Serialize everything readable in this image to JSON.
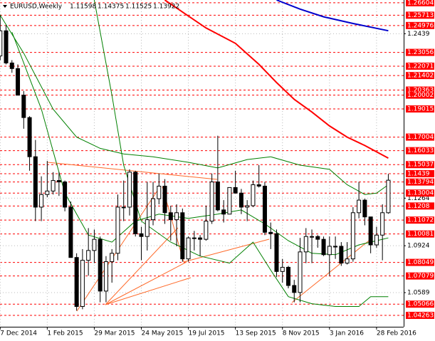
{
  "chart_data": {
    "type": "candlestick",
    "symbol": "EURUSD,Weekly",
    "categories": [
      null,
      "7 Dec 2014",
      null,
      null,
      null,
      null,
      null,
      null,
      null,
      "1 Feb 2015",
      null,
      null,
      null,
      null,
      null,
      null,
      null,
      "29 Mar 2015",
      null,
      null,
      null,
      null,
      null,
      null,
      null,
      "24 May 2015",
      null,
      null,
      null,
      null,
      null,
      null,
      null,
      "19 Jul 2015",
      null,
      null,
      null,
      null,
      null,
      null,
      null,
      "13 Sep 2015",
      null,
      null,
      null,
      null,
      null,
      null,
      null,
      "8 Nov 2015",
      null,
      null,
      null,
      null,
      null,
      null,
      null,
      "3 Jan 2016",
      null,
      null,
      null,
      null,
      null,
      null,
      null,
      "28 Feb 2016",
      null,
      null
    ],
    "open": [
      1.245,
      1.228,
      1.246,
      1.223,
      1.219,
      1.2,
      1.184,
      1.156,
      1.12,
      1.129,
      1.1315,
      1.139,
      1.138,
      1.12,
      1.084,
      1.049,
      1.082,
      1.089,
      1.097,
      1.06,
      1.081,
      1.087,
      1.12,
      1.12,
      1.145,
      1.101,
      1.099,
      1.111,
      1.126,
      1.135,
      1.116,
      1.111,
      1.116,
      1.083,
      1.098,
      1.098,
      1.097,
      1.11,
      1.138,
      1.118,
      1.115,
      1.134,
      1.13,
      1.12,
      1.121,
      1.136,
      1.135,
      1.102,
      1.101,
      1.074,
      1.077,
      1.064,
      1.059,
      1.088,
      1.099,
      1.099,
      1.097,
      1.086,
      1.092,
      1.092,
      1.08,
      1.083,
      1.116,
      1.125,
      1.113,
      1.093,
      1.1,
      1.11598
    ],
    "high": [
      1.253,
      1.257,
      1.25,
      1.225,
      1.222,
      1.203,
      1.185,
      1.168,
      1.142,
      1.153,
      1.145,
      1.145,
      1.139,
      1.124,
      1.087,
      1.09,
      1.105,
      1.104,
      1.099,
      1.085,
      1.09,
      1.129,
      1.139,
      1.147,
      1.146,
      1.106,
      1.138,
      1.138,
      1.144,
      1.14,
      1.121,
      1.122,
      1.119,
      1.099,
      1.103,
      1.1,
      1.121,
      1.144,
      1.171,
      1.125,
      1.134,
      1.146,
      1.133,
      1.125,
      1.139,
      1.15,
      1.138,
      1.109,
      1.104,
      1.083,
      1.078,
      1.068,
      1.098,
      1.105,
      1.104,
      1.1,
      1.099,
      1.099,
      1.099,
      1.095,
      1.095,
      1.12,
      1.138,
      1.126,
      1.113,
      1.106,
      1.122,
      1.14375
    ],
    "low": [
      1.227,
      1.225,
      1.222,
      1.216,
      1.2,
      1.176,
      1.146,
      1.11,
      1.11,
      1.127,
      1.129,
      1.128,
      1.117,
      1.084,
      1.046,
      1.047,
      1.071,
      1.08,
      1.052,
      1.052,
      1.066,
      1.082,
      1.11,
      1.114,
      1.099,
      1.082,
      1.089,
      1.107,
      1.122,
      1.108,
      1.096,
      1.092,
      1.081,
      1.081,
      1.089,
      1.085,
      1.096,
      1.108,
      1.117,
      1.109,
      1.115,
      1.13,
      1.115,
      1.11,
      1.12,
      1.134,
      1.1,
      1.09,
      1.07,
      1.066,
      1.062,
      1.052,
      1.052,
      1.08,
      1.08,
      1.091,
      1.085,
      1.071,
      1.083,
      1.078,
      1.079,
      1.081,
      1.112,
      1.107,
      1.087,
      1.091,
      1.082,
      1.11525
    ],
    "close": [
      1.228,
      1.246,
      1.223,
      1.219,
      1.2,
      1.184,
      1.156,
      1.12,
      1.129,
      1.1315,
      1.139,
      1.138,
      1.12,
      1.084,
      1.049,
      1.082,
      1.089,
      1.097,
      1.06,
      1.081,
      1.087,
      1.12,
      1.12,
      1.145,
      1.101,
      1.099,
      1.111,
      1.126,
      1.135,
      1.116,
      1.111,
      1.116,
      1.083,
      1.098,
      1.098,
      1.097,
      1.11,
      1.138,
      1.118,
      1.115,
      1.134,
      1.13,
      1.12,
      1.121,
      1.136,
      1.135,
      1.102,
      1.101,
      1.074,
      1.077,
      1.064,
      1.059,
      1.088,
      1.099,
      1.099,
      1.097,
      1.086,
      1.092,
      1.092,
      1.08,
      1.083,
      1.116,
      1.125,
      1.113,
      1.093,
      1.1,
      1.116,
      1.13922
    ],
    "lines": [
      {
        "color": "#ff0000",
        "width": 2,
        "x": [
          29,
          36,
          41,
          45,
          48,
          51,
          54,
          57,
          60,
          63,
          67
        ],
        "values": [
          1.268,
          1.248,
          1.237,
          1.222,
          1.209,
          1.197,
          1.188,
          1.178,
          1.17,
          1.164,
          1.155
        ]
      },
      {
        "color": "#0000cc",
        "width": 2,
        "x": [
          48,
          52,
          56,
          61,
          67
        ],
        "values": [
          1.268,
          1.2615,
          1.256,
          1.2512,
          1.246
        ]
      },
      {
        "color": "#008000",
        "width": 1,
        "x": [
          0,
          5,
          10,
          14,
          18,
          22,
          27,
          33,
          38,
          43,
          47,
          52,
          57,
          60,
          63,
          65,
          67
        ],
        "values": [
          1.264,
          1.23,
          1.19,
          1.17,
          1.162,
          1.158,
          1.156,
          1.152,
          1.148,
          1.154,
          1.156,
          1.15,
          1.147,
          1.136,
          1.129,
          1.13,
          1.136
        ]
      },
      {
        "color": "#008000",
        "width": 1,
        "x": [
          3,
          8,
          12,
          16,
          20,
          24,
          28,
          33,
          38,
          42,
          46,
          50,
          54,
          58,
          62,
          65,
          67
        ],
        "values": [
          1.245,
          1.19,
          1.13,
          1.1,
          1.095,
          1.11,
          1.115,
          1.112,
          1.115,
          1.118,
          1.108,
          1.096,
          1.087,
          1.086,
          1.093,
          1.096,
          1.098
        ]
      },
      {
        "color": "#008000",
        "width": 1,
        "x": [
          17,
          20,
          22,
          25,
          30,
          35,
          40,
          44,
          47,
          50,
          54,
          58,
          62,
          64,
          67
        ],
        "values": [
          1.268,
          1.2,
          1.15,
          1.11,
          1.095,
          1.085,
          1.08,
          1.095,
          1.075,
          1.056,
          1.051,
          1.049,
          1.049,
          1.056,
          1.056
        ]
      }
    ],
    "ylim": [
      1.0345,
      1.268
    ],
    "yticks": [
      1.2439,
      1.1264,
      1.0924,
      {
        "value": 1.0589,
        "label": "1.0589"
      }
    ],
    "levels": [
      1.26604,
      1.25713,
      1.24976,
      1.23056,
      1.22071,
      1.21402,
      1.20363,
      1.20002,
      1.19015,
      1.17004,
      1.16033,
      1.15037,
      1.1439,
      1.13794,
      1.13004,
      1.1208,
      1.11072,
      1.10081,
      1.08049,
      1.07079,
      1.05066,
      1.04263
    ],
    "level_color": "#ff0000",
    "bull_color": "#ffffff",
    "bear_color": "#000000"
  }
}
